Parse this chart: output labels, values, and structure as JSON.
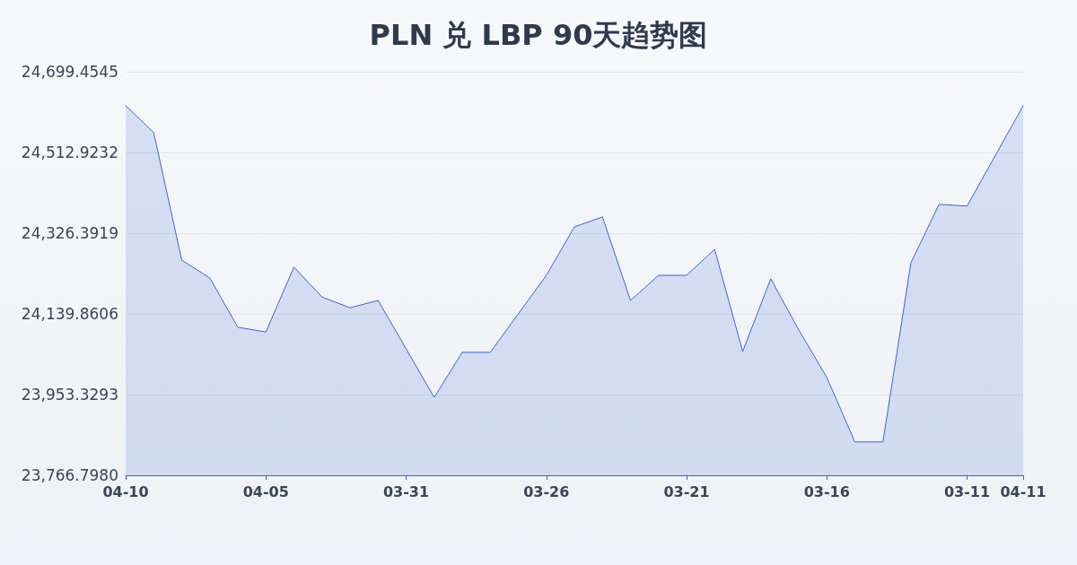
{
  "chart_data": {
    "type": "area",
    "title": "PLN 兑 LBP 90天趋势图",
    "categories": [
      "04-10",
      null,
      null,
      null,
      null,
      "04-05",
      null,
      null,
      null,
      null,
      "03-31",
      null,
      null,
      null,
      null,
      "03-26",
      null,
      null,
      null,
      null,
      "03-21",
      null,
      null,
      null,
      null,
      "03-16",
      null,
      null,
      null,
      null,
      "03-11",
      null,
      "04-11"
    ],
    "series": [
      {
        "color": "#3a66d1",
        "values": [
          24621,
          24559,
          24264,
          24223,
          24109,
          24098,
          24248,
          24179,
          24154,
          24171,
          24059,
          23947,
          24051,
          24051,
          24140,
          24229,
          24341,
          24364,
          24171,
          24229,
          24229,
          24289,
          24053,
          24221,
          24103,
          23993,
          23844,
          23844,
          24258,
          24393,
          24389,
          24505,
          24621
        ]
      }
    ],
    "ylim": [
      23766.798,
      24699.4545
    ],
    "yticks": [
      {
        "value": 23766.798,
        "label": "23,766.7980"
      },
      {
        "value": 23953.3293,
        "label": "23,953.3293"
      },
      {
        "value": 24139.8606,
        "label": "24,139.8606"
      },
      {
        "value": 24326.3919,
        "label": "24,326.3919"
      },
      {
        "value": 24512.9232,
        "label": "24,512.9232"
      },
      {
        "value": 24699.4545,
        "label": "24,699.4545"
      }
    ],
    "grid": "y",
    "marker": "none",
    "line_style": "solid"
  }
}
